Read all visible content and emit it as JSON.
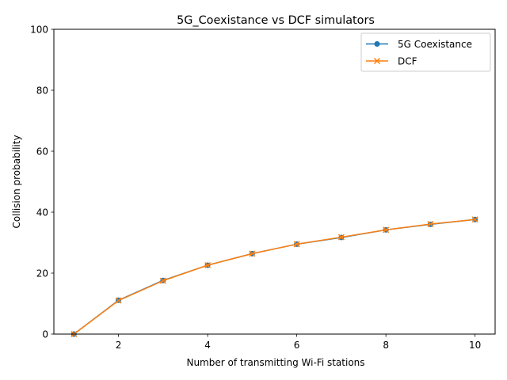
{
  "chart_data": {
    "type": "line",
    "title": "5G_Coexistance vs DCF simulators",
    "xlabel": "Number of transmitting Wi-Fi stations",
    "ylabel": "Collision probability",
    "x": [
      1,
      2,
      3,
      4,
      5,
      6,
      7,
      8,
      9,
      10
    ],
    "xlim": [
      0.55,
      10.45
    ],
    "ylim": [
      0,
      100
    ],
    "xticks": [
      2,
      4,
      6,
      8,
      10
    ],
    "yticks": [
      0,
      20,
      40,
      60,
      80,
      100
    ],
    "grid": false,
    "legend_position": "top-right",
    "series": [
      {
        "name": "5G Coexistance",
        "marker": "circle",
        "color": "#1f77b4",
        "values": [
          0,
          11.1,
          17.6,
          22.6,
          26.4,
          29.5,
          31.7,
          34.2,
          36.0,
          37.6
        ]
      },
      {
        "name": "DCF",
        "marker": "x",
        "color": "#ff7f0e",
        "values": [
          0,
          11.0,
          17.5,
          22.6,
          26.4,
          29.5,
          31.8,
          34.2,
          36.1,
          37.6
        ]
      }
    ]
  }
}
